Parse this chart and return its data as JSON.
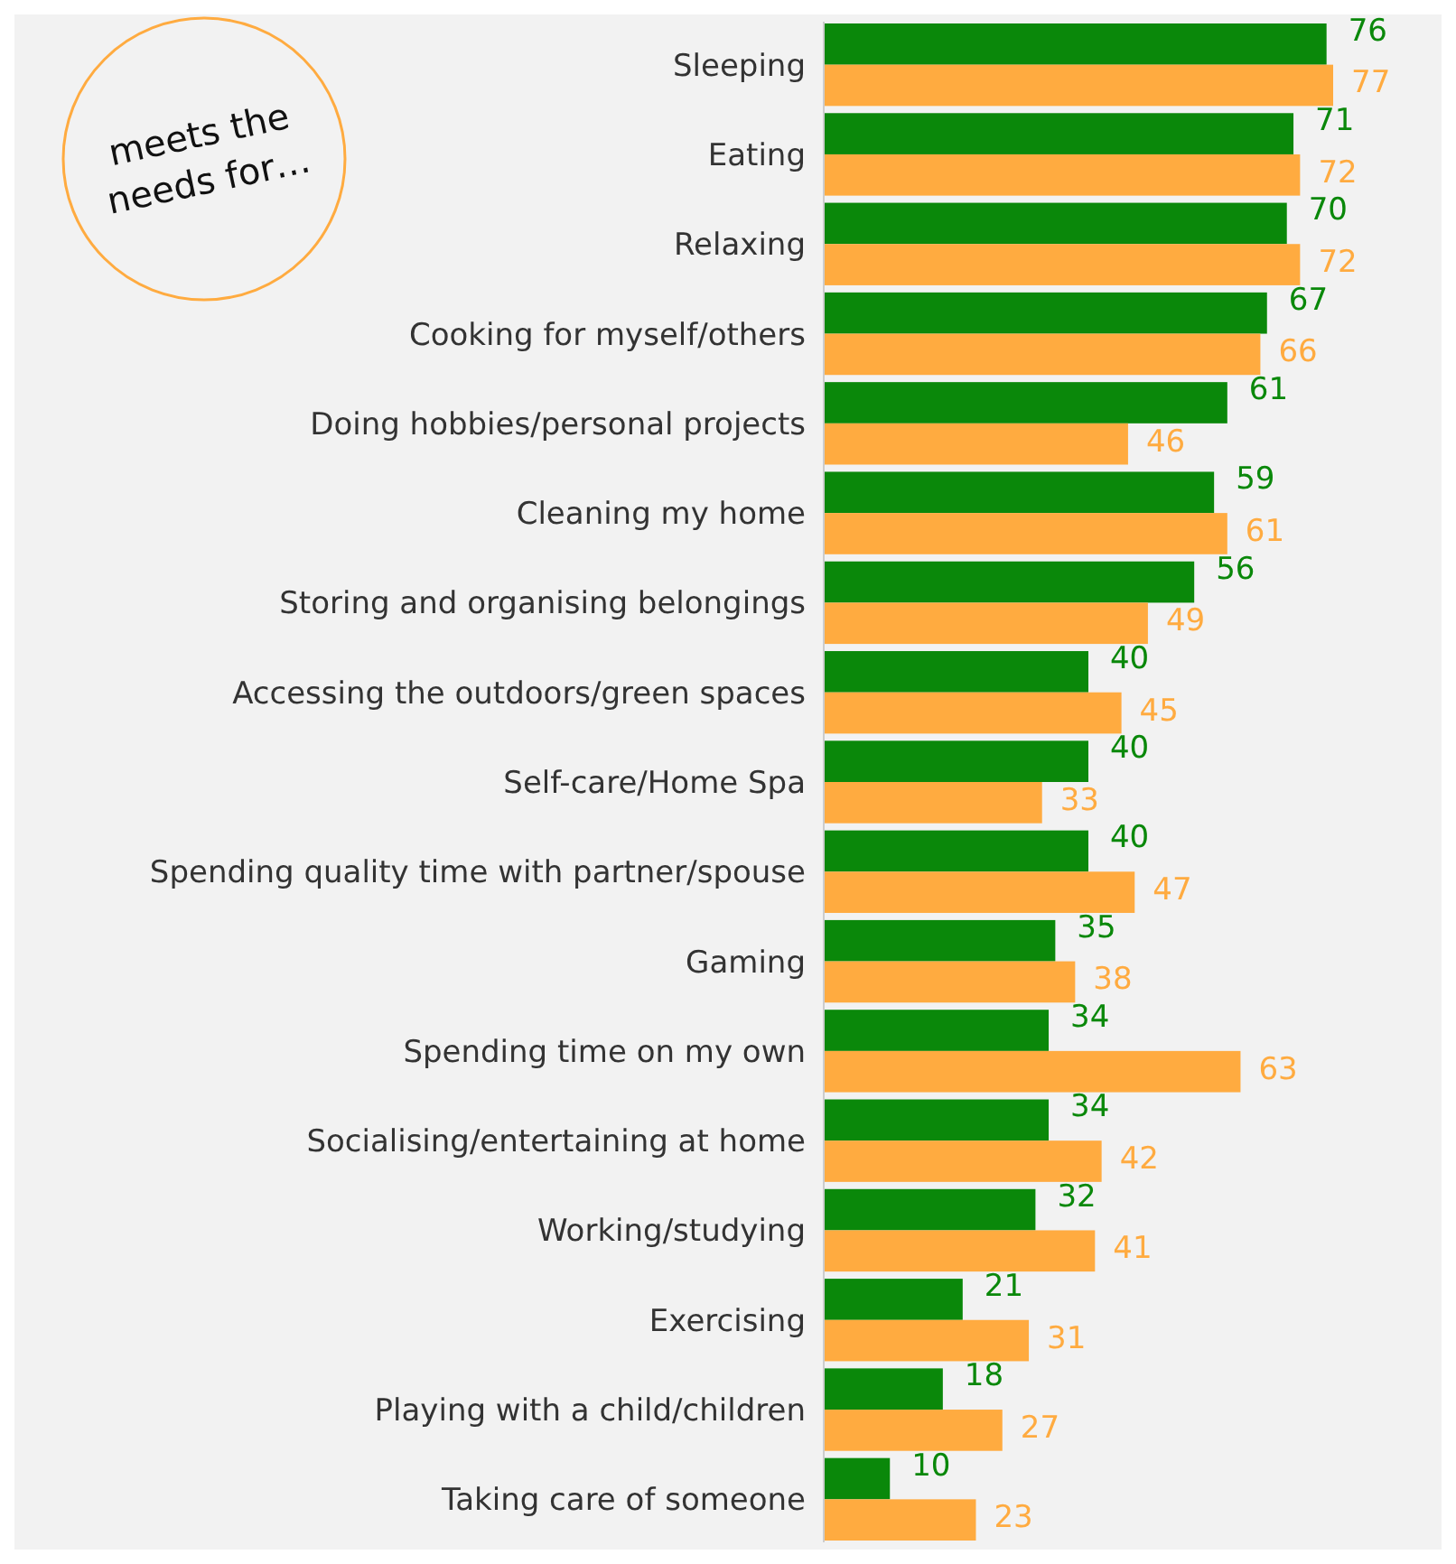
{
  "chart_data": {
    "type": "bar",
    "orientation": "horizontal",
    "data_labels": true,
    "categories": [
      "Sleeping",
      "Eating",
      "Relaxing",
      "Cooking for myself/others",
      "Doing hobbies/personal projects",
      "Cleaning my home",
      "Storing and organising belongings",
      "Accessing the outdoors/green spaces",
      "Self-care/Home Spa",
      "Spending quality time with partner/spouse",
      "Gaming",
      "Spending time on my own",
      "Socialising/entertaining at home",
      "Working/studying",
      "Exercising",
      "Playing with a child/children",
      "Taking care of someone"
    ],
    "series": [
      {
        "color": "#0a880a",
        "values": [
          76,
          71,
          70,
          67,
          61,
          59,
          56,
          40,
          40,
          40,
          35,
          34,
          34,
          32,
          21,
          18,
          10
        ]
      },
      {
        "color": "#ffab40",
        "values": [
          77,
          72,
          72,
          66,
          46,
          61,
          49,
          45,
          33,
          47,
          38,
          63,
          42,
          41,
          31,
          27,
          23
        ]
      }
    ],
    "annotations": [
      "meets the needs for…"
    ]
  }
}
